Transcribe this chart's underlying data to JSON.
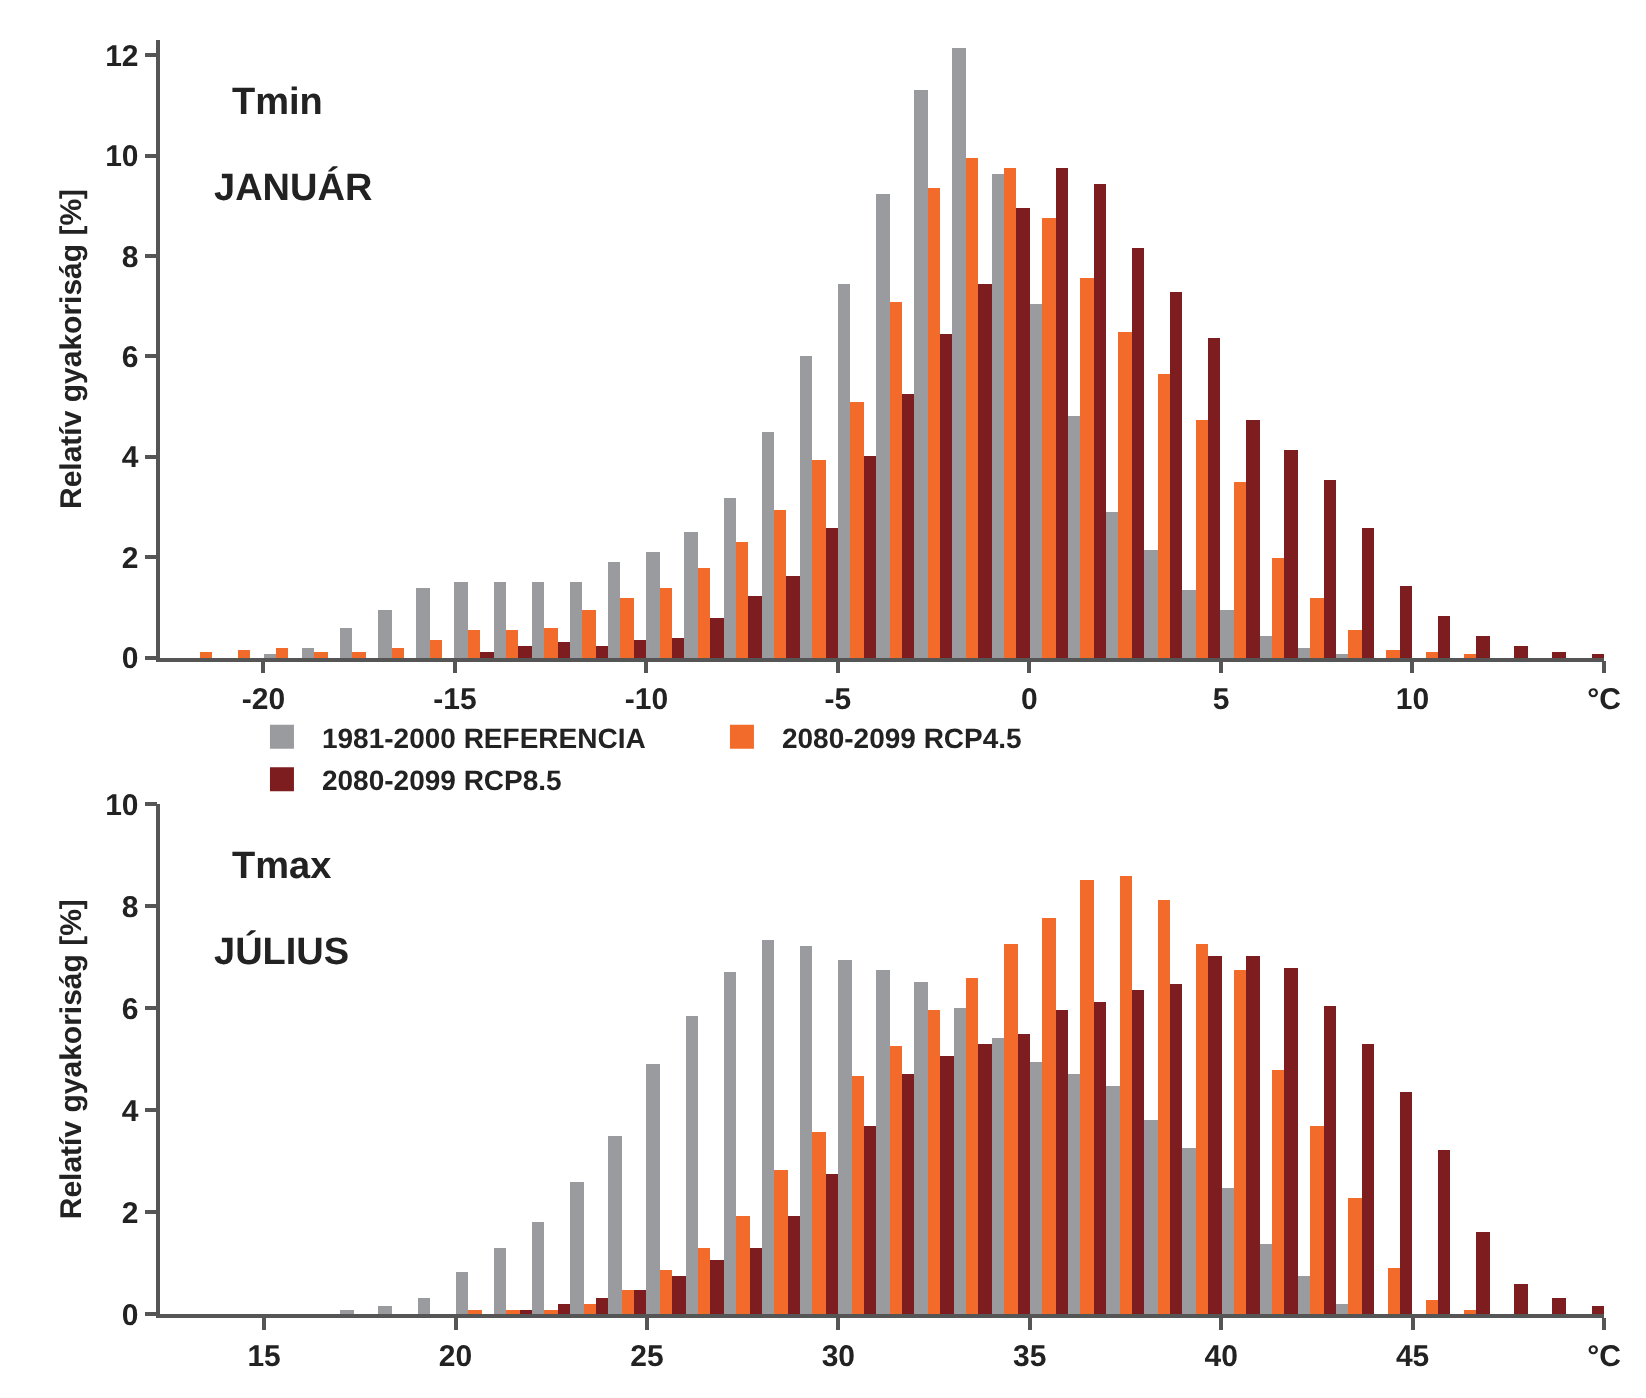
{
  "chart_data": [
    {
      "type": "bar",
      "annotations": [
        "Tmin",
        "JANUÁR"
      ],
      "ylabel": "Relatív gyakoriság [%]",
      "x": [
        -21.5,
        -20.5,
        -19.5,
        -18.5,
        -17.5,
        -16.5,
        -15.5,
        -14.5,
        -13.5,
        -12.5,
        -11.5,
        -10.5,
        -9.5,
        -8.5,
        -7.5,
        -6.5,
        -5.5,
        -4.5,
        -3.5,
        -2.5,
        -1.5,
        -0.5,
        0.5,
        1.5,
        2.5,
        3.5,
        4.5,
        5.5,
        6.5,
        7.5,
        8.5,
        9.5,
        10.5,
        11.5,
        12.5,
        13.5,
        14.5
      ],
      "series": [
        {
          "name": "1981-2000 REFERENCIA",
          "color": "#9a9b9f",
          "values": [
            0,
            0,
            0.05,
            0.2,
            0.6,
            0.95,
            1.4,
            1.5,
            1.5,
            1.5,
            1.5,
            1.9,
            2.1,
            2.5,
            3.2,
            4.5,
            6.0,
            7.45,
            9.25,
            11.3,
            12.15,
            9.65,
            7.05,
            4.8,
            2.9,
            2.15,
            1.35,
            0.95,
            0.45,
            0.2,
            0.05,
            0,
            0,
            0,
            0,
            0,
            0
          ]
        },
        {
          "name": "2080-2099 RCP4.5",
          "color": "#f26b2a",
          "values": [
            0.1,
            0.15,
            0.2,
            0.1,
            0.1,
            0.2,
            0.35,
            0.55,
            0.55,
            0.6,
            0.95,
            1.2,
            1.4,
            1.8,
            2.3,
            2.95,
            3.95,
            5.1,
            7.1,
            9.35,
            9.95,
            9.75,
            8.75,
            7.55,
            6.5,
            5.65,
            4.75,
            3.5,
            2.0,
            1.2,
            0.55,
            0.15,
            0.1,
            0.05,
            0,
            0,
            0
          ]
        },
        {
          "name": "2080-2099 RCP8.5",
          "color": "#7d1d1f",
          "values": [
            0,
            0,
            0,
            0,
            0,
            0,
            0,
            0.1,
            0.25,
            0.3,
            0.25,
            0.35,
            0.4,
            0.8,
            1.25,
            1.65,
            2.6,
            4.0,
            5.25,
            6.45,
            7.45,
            8.95,
            9.75,
            9.45,
            8.15,
            7.3,
            6.35,
            4.75,
            4.15,
            3.55,
            2.6,
            1.45,
            0.85,
            0.45,
            0.25,
            0.1,
            0.05
          ]
        }
      ],
      "xlim": [
        -22.7,
        15
      ],
      "xticks": [
        -20,
        -15,
        -10,
        -5,
        0,
        5,
        10,
        {
          "value": 15,
          "label": "°C"
        }
      ],
      "ylim": [
        0,
        12.3
      ],
      "yticks": [
        0,
        2,
        4,
        6,
        8,
        10,
        12
      ],
      "legend": "bottom"
    },
    {
      "type": "bar",
      "annotations": [
        "Tmax",
        "JÚLIUS"
      ],
      "ylabel": "Relatív gyakoriság [%]",
      "x": [
        13.5,
        14.5,
        15.5,
        16.5,
        17.5,
        18.5,
        19.5,
        20.5,
        21.5,
        22.5,
        23.5,
        24.5,
        25.5,
        26.5,
        27.5,
        28.5,
        29.5,
        30.5,
        31.5,
        32.5,
        33.5,
        34.5,
        35.5,
        36.5,
        37.5,
        38.5,
        39.5,
        40.5,
        41.5,
        42.5,
        43.5,
        44.5,
        45.5,
        46.5,
        47.5,
        48.5,
        49.5
      ],
      "series": [
        {
          "color": "#9a9b9f",
          "values": [
            0,
            0,
            0,
            0,
            0.05,
            0.15,
            0.3,
            0.8,
            1.3,
            1.8,
            2.6,
            3.5,
            4.9,
            5.85,
            6.7,
            7.35,
            7.2,
            6.95,
            6.75,
            6.5,
            6.0,
            5.4,
            4.95,
            4.7,
            4.45,
            3.8,
            3.25,
            2.45,
            1.35,
            0.75,
            0.2,
            0,
            0,
            0,
            0,
            0,
            0
          ]
        },
        {
          "color": "#f26b2a",
          "values": [
            0,
            0,
            0,
            0,
            0,
            0,
            0,
            0.05,
            0.05,
            0.05,
            0.2,
            0.45,
            0.85,
            1.3,
            1.9,
            2.8,
            3.55,
            4.65,
            5.25,
            5.95,
            6.6,
            7.25,
            7.75,
            8.5,
            8.6,
            8.1,
            7.25,
            6.75,
            4.8,
            3.7,
            2.25,
            0.9,
            0.25,
            0.05,
            0,
            0,
            0
          ]
        },
        {
          "color": "#7d1d1f",
          "values": [
            0,
            0,
            0,
            0,
            0,
            0,
            0,
            0,
            0.05,
            0.2,
            0.3,
            0.45,
            0.75,
            1.05,
            1.3,
            1.9,
            2.75,
            3.7,
            4.7,
            5.05,
            5.3,
            5.5,
            5.95,
            6.1,
            6.35,
            6.45,
            7.0,
            7.0,
            6.8,
            6.05,
            5.3,
            4.35,
            3.2,
            1.6,
            0.6,
            0.3,
            0.15
          ]
        }
      ],
      "xlim": [
        12.28,
        50
      ],
      "xticks": [
        15,
        20,
        25,
        30,
        35,
        40,
        45,
        {
          "value": 50,
          "label": "°C"
        }
      ],
      "ylim": [
        0,
        10
      ],
      "yticks": [
        0,
        2,
        4,
        6,
        8,
        10
      ],
      "legend": false
    }
  ]
}
